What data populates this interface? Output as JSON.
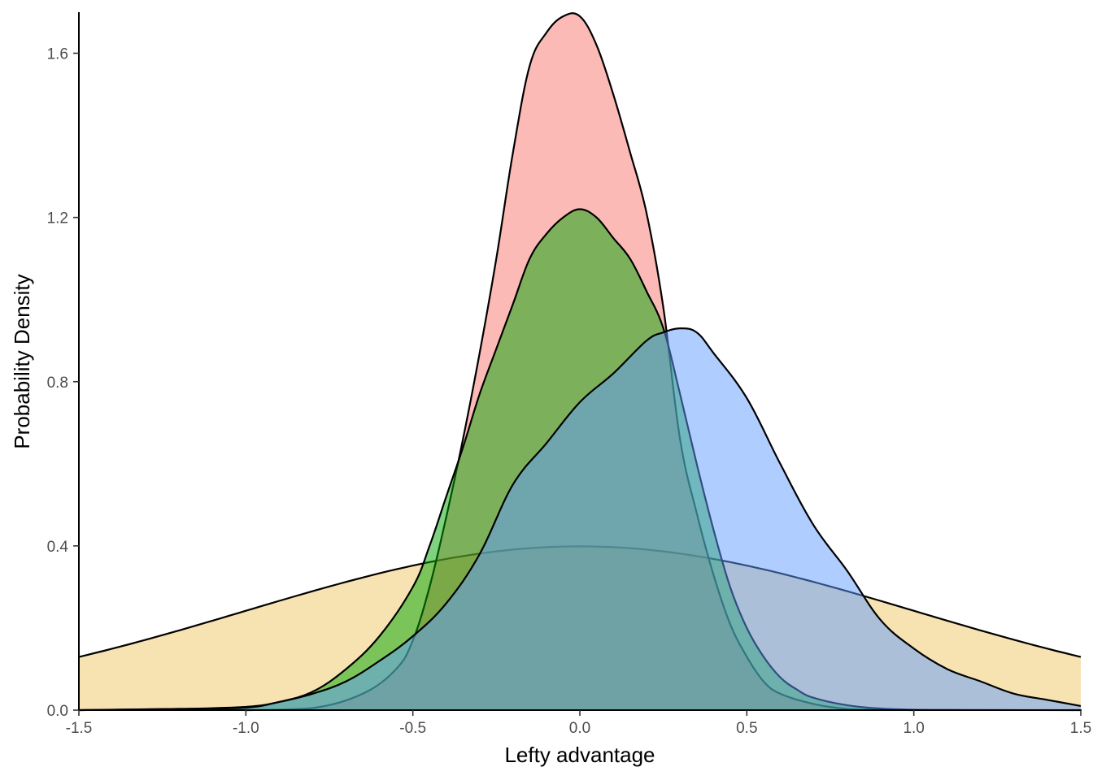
{
  "chart_data": {
    "type": "area",
    "title": "",
    "xlabel": "Lefty advantage",
    "ylabel": "Probability Density",
    "xlim": [
      -1.5,
      1.5
    ],
    "ylim": [
      0,
      1.7
    ],
    "x_ticks": [
      "-1.5",
      "-1.0",
      "-0.5",
      "0.0",
      "0.5",
      "1.0",
      "1.5"
    ],
    "y_ticks": [
      "0.0",
      "0.4",
      "0.8",
      "1.2",
      "1.6"
    ],
    "grid": false,
    "legend": "none",
    "series": [
      {
        "fill": "#e69f00",
        "fill_opacity": 0.3,
        "distribution": "normal",
        "mean": 0.0,
        "sd": 1.0,
        "x": [
          -1.5,
          1.5
        ],
        "y": [
          0.13,
          0.13
        ]
      },
      {
        "fill": "#f8766d",
        "fill_opacity": 0.5,
        "x": [
          -1.0,
          -0.8,
          -0.65,
          -0.55,
          -0.5,
          -0.45,
          -0.4,
          -0.35,
          -0.3,
          -0.25,
          -0.2,
          -0.15,
          -0.1,
          -0.05,
          0.0,
          0.05,
          0.1,
          0.15,
          0.2,
          0.25,
          0.3,
          0.35,
          0.4,
          0.45,
          0.5,
          0.55,
          0.6,
          0.7,
          0.8,
          0.9,
          1.0
        ],
        "y": [
          0.0,
          0.005,
          0.04,
          0.1,
          0.17,
          0.3,
          0.47,
          0.66,
          0.87,
          1.1,
          1.36,
          1.57,
          1.65,
          1.69,
          1.69,
          1.62,
          1.5,
          1.36,
          1.21,
          0.98,
          0.66,
          0.48,
          0.33,
          0.21,
          0.13,
          0.07,
          0.04,
          0.015,
          0.003,
          0.001,
          0.0
        ]
      },
      {
        "fill": "#00a600",
        "fill_opacity": 0.5,
        "x": [
          -1.5,
          -1.2,
          -1.0,
          -0.9,
          -0.8,
          -0.7,
          -0.6,
          -0.5,
          -0.45,
          -0.4,
          -0.35,
          -0.3,
          -0.25,
          -0.2,
          -0.15,
          -0.1,
          -0.05,
          0.0,
          0.05,
          0.1,
          0.15,
          0.2,
          0.25,
          0.3,
          0.35,
          0.4,
          0.45,
          0.5,
          0.55,
          0.6,
          0.65,
          0.7,
          0.8,
          0.9,
          1.0,
          1.1,
          1.2,
          1.5
        ],
        "y": [
          0.0,
          0.003,
          0.008,
          0.02,
          0.045,
          0.1,
          0.18,
          0.3,
          0.4,
          0.52,
          0.64,
          0.77,
          0.88,
          0.99,
          1.1,
          1.16,
          1.2,
          1.22,
          1.2,
          1.15,
          1.1,
          1.02,
          0.93,
          0.77,
          0.6,
          0.44,
          0.3,
          0.2,
          0.13,
          0.08,
          0.05,
          0.03,
          0.012,
          0.004,
          0.001,
          0.0005,
          0.0002,
          0.0
        ]
      },
      {
        "fill": "#619cff",
        "fill_opacity": 0.5,
        "x": [
          -1.5,
          -1.2,
          -1.0,
          -0.9,
          -0.8,
          -0.7,
          -0.6,
          -0.5,
          -0.4,
          -0.3,
          -0.2,
          -0.1,
          0.0,
          0.1,
          0.2,
          0.25,
          0.3,
          0.35,
          0.4,
          0.5,
          0.6,
          0.7,
          0.8,
          0.9,
          1.0,
          1.1,
          1.2,
          1.3,
          1.4,
          1.5
        ],
        "y": [
          0.0,
          0.003,
          0.006,
          0.02,
          0.04,
          0.07,
          0.12,
          0.18,
          0.26,
          0.38,
          0.55,
          0.65,
          0.75,
          0.82,
          0.9,
          0.92,
          0.93,
          0.92,
          0.87,
          0.76,
          0.6,
          0.45,
          0.34,
          0.22,
          0.15,
          0.1,
          0.07,
          0.04,
          0.025,
          0.01
        ]
      }
    ]
  }
}
